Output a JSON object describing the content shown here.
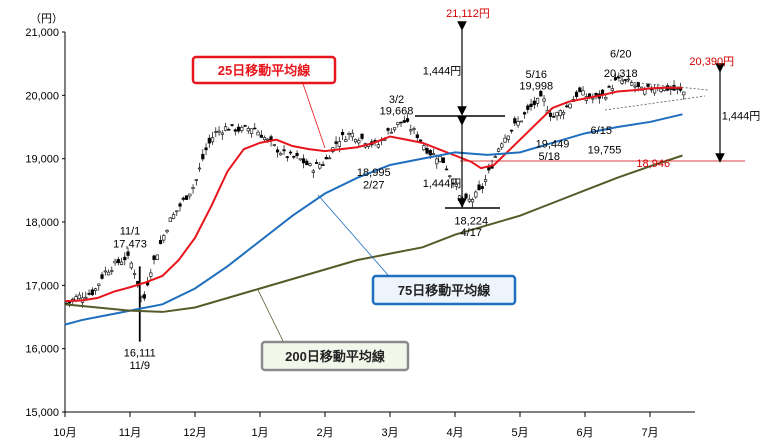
{
  "chart_data": {
    "type": "line",
    "yunit": "（円）",
    "ylim": [
      15000,
      21000
    ],
    "yticks": [
      "15,000",
      "16,000",
      "17,000",
      "18,000",
      "19,000",
      "20,000",
      "21,000"
    ],
    "x_months": [
      "10月",
      "11月",
      "12月",
      "1月",
      "2月",
      "3月",
      "4月",
      "5月",
      "6月",
      "7月"
    ],
    "grid": false,
    "series": [
      {
        "name": "25日移動平均線",
        "color": "#e8141c",
        "box_border": "#e8141c",
        "points": [
          [
            0,
            16750
          ],
          [
            0.25,
            16760
          ],
          [
            0.5,
            16800
          ],
          [
            0.75,
            16900
          ],
          [
            1.0,
            16970
          ],
          [
            1.25,
            17050
          ],
          [
            1.5,
            17150
          ],
          [
            1.75,
            17400
          ],
          [
            2.0,
            17750
          ],
          [
            2.25,
            18250
          ],
          [
            2.5,
            18800
          ],
          [
            2.75,
            19150
          ],
          [
            3.0,
            19250
          ],
          [
            3.25,
            19300
          ],
          [
            3.5,
            19200
          ],
          [
            3.75,
            19150
          ],
          [
            4.0,
            19120
          ],
          [
            4.25,
            19150
          ],
          [
            4.5,
            19180
          ],
          [
            4.75,
            19250
          ],
          [
            5.0,
            19350
          ],
          [
            5.25,
            19300
          ],
          [
            5.5,
            19250
          ],
          [
            5.75,
            19150
          ],
          [
            6.0,
            19050
          ],
          [
            6.25,
            18950
          ],
          [
            6.4,
            18850
          ],
          [
            6.6,
            18900
          ],
          [
            6.75,
            19050
          ],
          [
            7.0,
            19300
          ],
          [
            7.25,
            19550
          ],
          [
            7.5,
            19800
          ],
          [
            7.75,
            19900
          ],
          [
            8.0,
            19950
          ],
          [
            8.25,
            20000
          ],
          [
            8.5,
            20060
          ],
          [
            8.75,
            20080
          ],
          [
            9.0,
            20110
          ],
          [
            9.2,
            20120
          ],
          [
            9.5,
            20120
          ]
        ]
      },
      {
        "name": "75日移動平均線",
        "color": "#1f6fbf",
        "box_border": "#1f6fbf",
        "points": [
          [
            0,
            16380
          ],
          [
            0.25,
            16450
          ],
          [
            0.5,
            16500
          ],
          [
            0.75,
            16550
          ],
          [
            1.0,
            16600
          ],
          [
            1.5,
            16700
          ],
          [
            2.0,
            16950
          ],
          [
            2.5,
            17300
          ],
          [
            3.0,
            17700
          ],
          [
            3.5,
            18100
          ],
          [
            4.0,
            18450
          ],
          [
            4.5,
            18700
          ],
          [
            5.0,
            18900
          ],
          [
            5.5,
            19000
          ],
          [
            6.0,
            19100
          ],
          [
            6.5,
            19060
          ],
          [
            7.0,
            19100
          ],
          [
            7.5,
            19250
          ],
          [
            8.0,
            19400
          ],
          [
            8.5,
            19500
          ],
          [
            9.0,
            19580
          ],
          [
            9.5,
            19700
          ]
        ]
      },
      {
        "name": "200日移動平均線",
        "color": "#555a28",
        "box_border": "#8a8a8a",
        "points": [
          [
            0,
            16700
          ],
          [
            0.5,
            16650
          ],
          [
            1.0,
            16600
          ],
          [
            1.5,
            16580
          ],
          [
            2.0,
            16650
          ],
          [
            2.5,
            16800
          ],
          [
            3.0,
            16950
          ],
          [
            3.5,
            17100
          ],
          [
            4.0,
            17250
          ],
          [
            4.5,
            17400
          ],
          [
            5.0,
            17500
          ],
          [
            5.5,
            17600
          ],
          [
            6.0,
            17800
          ],
          [
            6.5,
            17950
          ],
          [
            7.0,
            18100
          ],
          [
            7.5,
            18300
          ],
          [
            8.0,
            18500
          ],
          [
            8.5,
            18700
          ],
          [
            9.0,
            18880
          ],
          [
            9.5,
            19050
          ]
        ]
      }
    ],
    "candles_trend": [
      [
        0,
        16700
      ],
      [
        0.2,
        16820
      ],
      [
        0.45,
        16900
      ],
      [
        0.6,
        17200
      ],
      [
        0.8,
        17350
      ],
      [
        0.95,
        17450
      ],
      [
        1.05,
        17300
      ],
      [
        1.2,
        16700
      ],
      [
        1.3,
        17200
      ],
      [
        1.45,
        17600
      ],
      [
        1.6,
        18000
      ],
      [
        1.8,
        18300
      ],
      [
        2.0,
        18600
      ],
      [
        2.15,
        19100
      ],
      [
        2.3,
        19400
      ],
      [
        2.5,
        19500
      ],
      [
        2.7,
        19450
      ],
      [
        2.9,
        19500
      ],
      [
        3.0,
        19400
      ],
      [
        3.2,
        19200
      ],
      [
        3.4,
        19050
      ],
      [
        3.6,
        19000
      ],
      [
        3.8,
        18850
      ],
      [
        4.0,
        18950
      ],
      [
        4.2,
        19300
      ],
      [
        4.4,
        19400
      ],
      [
        4.6,
        19300
      ],
      [
        4.8,
        19200
      ],
      [
        5.0,
        19450
      ],
      [
        5.2,
        19600
      ],
      [
        5.4,
        19400
      ],
      [
        5.6,
        19100
      ],
      [
        5.8,
        19000
      ],
      [
        6.0,
        18600
      ],
      [
        6.1,
        18300
      ],
      [
        6.25,
        18350
      ],
      [
        6.4,
        18500
      ],
      [
        6.55,
        18850
      ],
      [
        6.7,
        19250
      ],
      [
        6.85,
        19450
      ],
      [
        7.0,
        19600
      ],
      [
        7.2,
        19850
      ],
      [
        7.35,
        19950
      ],
      [
        7.5,
        19650
      ],
      [
        7.7,
        19800
      ],
      [
        7.9,
        20050
      ],
      [
        8.1,
        19950
      ],
      [
        8.3,
        20000
      ],
      [
        8.5,
        20250
      ],
      [
        8.7,
        20200
      ],
      [
        8.9,
        20050
      ],
      [
        9.1,
        20150
      ],
      [
        9.3,
        20100
      ],
      [
        9.5,
        20050
      ]
    ],
    "annotations": [
      {
        "text": "11/1",
        "x": 1.0,
        "y": 17800,
        "color": "#000"
      },
      {
        "text": "17,473",
        "x": 1.0,
        "y": 17600,
        "color": "#000"
      },
      {
        "text": "16,111",
        "x": 1.15,
        "y": 15880,
        "color": "#000"
      },
      {
        "text": "11/9",
        "x": 1.15,
        "y": 15680,
        "color": "#000"
      },
      {
        "text": "3/2",
        "x": 5.1,
        "y": 19880,
        "color": "#000"
      },
      {
        "text": "19,668",
        "x": 5.1,
        "y": 19700,
        "color": "#000"
      },
      {
        "text": "18,995",
        "x": 4.75,
        "y": 18730,
        "color": "#000"
      },
      {
        "text": "2/27",
        "x": 4.75,
        "y": 18530,
        "color": "#000"
      },
      {
        "text": "18,224",
        "x": 6.25,
        "y": 17960,
        "color": "#000"
      },
      {
        "text": "4/17",
        "x": 6.25,
        "y": 17780,
        "color": "#000"
      },
      {
        "text": "1,444円",
        "x": 5.8,
        "y": 18550,
        "color": "#000"
      },
      {
        "text": "1,444円",
        "x": 5.8,
        "y": 20330,
        "color": "#000"
      },
      {
        "text": "21,112円",
        "x": 6.2,
        "y": 21240,
        "color": "#d40000"
      },
      {
        "text": "5/16",
        "x": 7.25,
        "y": 20270,
        "color": "#000"
      },
      {
        "text": "19,998",
        "x": 7.25,
        "y": 20090,
        "color": "#000"
      },
      {
        "text": "19,449",
        "x": 7.5,
        "y": 19180,
        "color": "#000"
      },
      {
        "text": "5/18",
        "x": 7.45,
        "y": 18980,
        "color": "#000"
      },
      {
        "text": "6/20",
        "x": 8.55,
        "y": 20600,
        "color": "#000"
      },
      {
        "text": "20,318",
        "x": 8.55,
        "y": 20290,
        "color": "#000"
      },
      {
        "text": "6/15",
        "x": 8.25,
        "y": 19390,
        "color": "#000"
      },
      {
        "text": "19,755",
        "x": 8.3,
        "y": 19080,
        "color": "#000"
      },
      {
        "text": "18,946",
        "x": 9.05,
        "y": 18870,
        "color": "#d40000"
      },
      {
        "text": "20,390円",
        "x": 9.95,
        "y": 20480,
        "color": "#d40000"
      },
      {
        "text": "1,444円",
        "x": 10.4,
        "y": 19620,
        "color": "#000"
      }
    ]
  }
}
